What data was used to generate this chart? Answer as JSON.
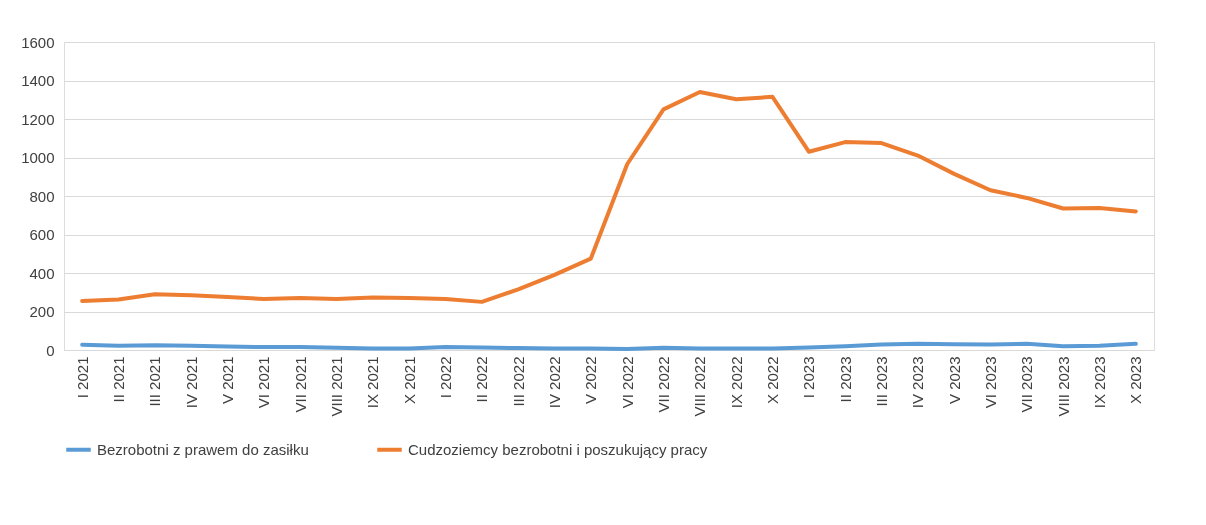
{
  "chart_data": {
    "type": "line",
    "categories": [
      "I 2021",
      "II 2021",
      "III 2021",
      "IV 2021",
      "V 2021",
      "VI 2021",
      "VII 2021",
      "VIII 2021",
      "IX 2021",
      "X 2021",
      "I 2022",
      "II 2022",
      "III 2022",
      "IV 2022",
      "V 2022",
      "VI 2022",
      "VII 2022",
      "VIII 2022",
      "IX 2022",
      "X 2022",
      "I 2023",
      "II 2023",
      "III 2023",
      "IV 2023",
      "V 2023",
      "VI 2023",
      "VII 2023",
      "VIII 2023",
      "IX 2023",
      "X 2023"
    ],
    "series": [
      {
        "name": "Bezrobotni z prawem do zasiłku",
        "color": "#5b9bd5",
        "values": [
          27,
          22,
          25,
          22,
          18,
          15,
          15,
          12,
          8,
          8,
          15,
          13,
          10,
          8,
          8,
          5,
          12,
          8,
          8,
          8,
          13,
          20,
          28,
          32,
          30,
          28,
          32,
          20,
          22,
          32
        ]
      },
      {
        "name": "Cudzoziemcy bezrobotni i poszukujący pracy",
        "color": "#ed7d31",
        "values": [
          255,
          262,
          290,
          284,
          275,
          265,
          270,
          265,
          273,
          270,
          265,
          250,
          315,
          390,
          475,
          965,
          1250,
          1340,
          1303,
          1315,
          1030,
          1080,
          1075,
          1010,
          915,
          830,
          790,
          735,
          738,
          720
        ]
      }
    ],
    "ylim": [
      0,
      1600
    ],
    "yticks": [
      0,
      200,
      400,
      600,
      800,
      1000,
      1200,
      1400,
      1600
    ],
    "grid": "y",
    "legend": "bottom",
    "marker": "none",
    "line_style": "solid"
  }
}
